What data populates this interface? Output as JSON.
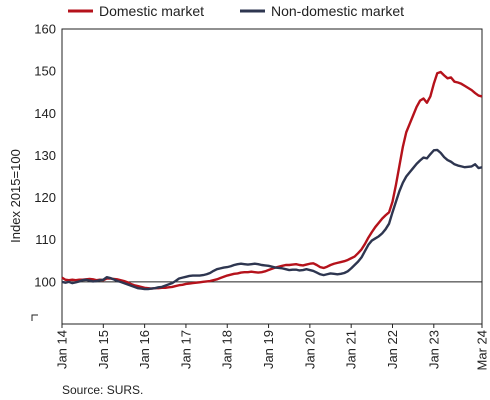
{
  "chart_data": {
    "type": "line",
    "ylabel": "Index 2015=100",
    "ylim": [
      90,
      160
    ],
    "yticks": [
      100,
      110,
      120,
      130,
      140,
      150,
      160
    ],
    "xlim": [
      "2014-01",
      "2024-03"
    ],
    "xticks": [
      {
        "label": "Jan 14",
        "x": "2014-01"
      },
      {
        "label": "Jan 15",
        "x": "2015-01"
      },
      {
        "label": "Jan 16",
        "x": "2016-01"
      },
      {
        "label": "Jan 17",
        "x": "2017-01"
      },
      {
        "label": "Jan 18",
        "x": "2018-01"
      },
      {
        "label": "Jan 19",
        "x": "2019-01"
      },
      {
        "label": "Jan 20",
        "x": "2020-01"
      },
      {
        "label": "Jan 21",
        "x": "2021-01"
      },
      {
        "label": "Jan 22",
        "x": "2022-01"
      },
      {
        "label": "Jan 23",
        "x": "2023-01"
      },
      {
        "label": "Mar 24",
        "x": "2024-03"
      }
    ],
    "reference_line": 100,
    "axis_break": true,
    "legend_position": "top",
    "source": "Source: SURS.",
    "series": [
      {
        "name": "Domestic market",
        "color": "#b5121b",
        "points": [
          [
            "2014-01",
            101.0
          ],
          [
            "2014-02",
            100.5
          ],
          [
            "2014-03",
            100.4
          ],
          [
            "2014-04",
            100.5
          ],
          [
            "2014-05",
            100.4
          ],
          [
            "2014-06",
            100.5
          ],
          [
            "2014-07",
            100.5
          ],
          [
            "2014-08",
            100.6
          ],
          [
            "2014-09",
            100.7
          ],
          [
            "2014-10",
            100.6
          ],
          [
            "2014-11",
            100.4
          ],
          [
            "2014-12",
            100.5
          ],
          [
            "2015-01",
            100.4
          ],
          [
            "2015-02",
            100.8
          ],
          [
            "2015-03",
            100.8
          ],
          [
            "2015-04",
            100.7
          ],
          [
            "2015-05",
            100.6
          ],
          [
            "2015-06",
            100.4
          ],
          [
            "2015-07",
            100.2
          ],
          [
            "2015-08",
            99.9
          ],
          [
            "2015-09",
            99.5
          ],
          [
            "2015-10",
            99.2
          ],
          [
            "2015-11",
            99.0
          ],
          [
            "2015-12",
            98.8
          ],
          [
            "2016-01",
            98.6
          ],
          [
            "2016-02",
            98.5
          ],
          [
            "2016-03",
            98.4
          ],
          [
            "2016-04",
            98.5
          ],
          [
            "2016-05",
            98.5
          ],
          [
            "2016-06",
            98.6
          ],
          [
            "2016-07",
            98.6
          ],
          [
            "2016-08",
            98.7
          ],
          [
            "2016-09",
            98.8
          ],
          [
            "2016-10",
            99.0
          ],
          [
            "2016-11",
            99.2
          ],
          [
            "2016-12",
            99.3
          ],
          [
            "2017-01",
            99.5
          ],
          [
            "2017-02",
            99.6
          ],
          [
            "2017-03",
            99.7
          ],
          [
            "2017-04",
            99.8
          ],
          [
            "2017-05",
            99.9
          ],
          [
            "2017-06",
            100.0
          ],
          [
            "2017-07",
            100.1
          ],
          [
            "2017-08",
            100.2
          ],
          [
            "2017-09",
            100.4
          ],
          [
            "2017-10",
            100.6
          ],
          [
            "2017-11",
            100.9
          ],
          [
            "2017-12",
            101.2
          ],
          [
            "2018-01",
            101.5
          ],
          [
            "2018-02",
            101.7
          ],
          [
            "2018-03",
            101.9
          ],
          [
            "2018-04",
            102.0
          ],
          [
            "2018-05",
            102.2
          ],
          [
            "2018-06",
            102.3
          ],
          [
            "2018-07",
            102.3
          ],
          [
            "2018-08",
            102.4
          ],
          [
            "2018-09",
            102.3
          ],
          [
            "2018-10",
            102.2
          ],
          [
            "2018-11",
            102.3
          ],
          [
            "2018-12",
            102.5
          ],
          [
            "2019-01",
            102.8
          ],
          [
            "2019-02",
            103.1
          ],
          [
            "2019-03",
            103.4
          ],
          [
            "2019-04",
            103.6
          ],
          [
            "2019-05",
            103.8
          ],
          [
            "2019-06",
            104.0
          ],
          [
            "2019-07",
            104.0
          ],
          [
            "2019-08",
            104.1
          ],
          [
            "2019-09",
            104.2
          ],
          [
            "2019-10",
            104.0
          ],
          [
            "2019-11",
            103.9
          ],
          [
            "2019-12",
            104.1
          ],
          [
            "2020-01",
            104.3
          ],
          [
            "2020-02",
            104.4
          ],
          [
            "2020-03",
            104.0
          ],
          [
            "2020-04",
            103.5
          ],
          [
            "2020-05",
            103.3
          ],
          [
            "2020-06",
            103.6
          ],
          [
            "2020-07",
            104.0
          ],
          [
            "2020-08",
            104.3
          ],
          [
            "2020-09",
            104.5
          ],
          [
            "2020-10",
            104.7
          ],
          [
            "2020-11",
            104.9
          ],
          [
            "2020-12",
            105.2
          ],
          [
            "2021-01",
            105.6
          ],
          [
            "2021-02",
            106.0
          ],
          [
            "2021-03",
            106.8
          ],
          [
            "2021-04",
            107.7
          ],
          [
            "2021-05",
            109.0
          ],
          [
            "2021-06",
            110.5
          ],
          [
            "2021-07",
            111.8
          ],
          [
            "2021-08",
            113.0
          ],
          [
            "2021-09",
            114.0
          ],
          [
            "2021-10",
            115.0
          ],
          [
            "2021-11",
            115.8
          ],
          [
            "2021-12",
            116.5
          ],
          [
            "2022-01",
            119.0
          ],
          [
            "2022-02",
            123.0
          ],
          [
            "2022-03",
            127.5
          ],
          [
            "2022-04",
            132.0
          ],
          [
            "2022-05",
            135.5
          ],
          [
            "2022-06",
            137.5
          ],
          [
            "2022-07",
            139.5
          ],
          [
            "2022-08",
            141.5
          ],
          [
            "2022-09",
            143.0
          ],
          [
            "2022-10",
            143.5
          ],
          [
            "2022-11",
            142.5
          ],
          [
            "2022-12",
            144.0
          ],
          [
            "2023-01",
            147.0
          ],
          [
            "2023-02",
            149.5
          ],
          [
            "2023-03",
            149.8
          ],
          [
            "2023-04",
            149.0
          ],
          [
            "2023-05",
            148.3
          ],
          [
            "2023-06",
            148.5
          ],
          [
            "2023-07",
            147.5
          ],
          [
            "2023-08",
            147.3
          ],
          [
            "2023-09",
            147.0
          ],
          [
            "2023-10",
            146.5
          ],
          [
            "2023-11",
            146.0
          ],
          [
            "2023-12",
            145.5
          ],
          [
            "2024-01",
            144.8
          ],
          [
            "2024-02",
            144.2
          ],
          [
            "2024-03",
            144.0
          ]
        ]
      },
      {
        "name": "Non-domestic market",
        "color": "#2e3650",
        "points": [
          [
            "2014-01",
            100.0
          ],
          [
            "2014-02",
            99.8
          ],
          [
            "2014-03",
            100.0
          ],
          [
            "2014-04",
            99.7
          ],
          [
            "2014-05",
            99.9
          ],
          [
            "2014-06",
            100.1
          ],
          [
            "2014-07",
            100.4
          ],
          [
            "2014-08",
            100.5
          ],
          [
            "2014-09",
            100.3
          ],
          [
            "2014-10",
            100.1
          ],
          [
            "2014-11",
            100.2
          ],
          [
            "2014-12",
            100.4
          ],
          [
            "2015-01",
            100.5
          ],
          [
            "2015-02",
            101.1
          ],
          [
            "2015-03",
            100.9
          ],
          [
            "2015-04",
            100.6
          ],
          [
            "2015-05",
            100.2
          ],
          [
            "2015-06",
            100.0
          ],
          [
            "2015-07",
            99.7
          ],
          [
            "2015-08",
            99.4
          ],
          [
            "2015-09",
            99.1
          ],
          [
            "2015-10",
            98.8
          ],
          [
            "2015-11",
            98.5
          ],
          [
            "2015-12",
            98.4
          ],
          [
            "2016-01",
            98.3
          ],
          [
            "2016-02",
            98.3
          ],
          [
            "2016-03",
            98.4
          ],
          [
            "2016-04",
            98.5
          ],
          [
            "2016-05",
            98.7
          ],
          [
            "2016-06",
            98.8
          ],
          [
            "2016-07",
            99.1
          ],
          [
            "2016-08",
            99.4
          ],
          [
            "2016-09",
            99.7
          ],
          [
            "2016-10",
            100.2
          ],
          [
            "2016-11",
            100.8
          ],
          [
            "2016-12",
            101.0
          ],
          [
            "2017-01",
            101.2
          ],
          [
            "2017-02",
            101.4
          ],
          [
            "2017-03",
            101.5
          ],
          [
            "2017-04",
            101.5
          ],
          [
            "2017-05",
            101.5
          ],
          [
            "2017-06",
            101.6
          ],
          [
            "2017-07",
            101.8
          ],
          [
            "2017-08",
            102.1
          ],
          [
            "2017-09",
            102.6
          ],
          [
            "2017-10",
            103.0
          ],
          [
            "2017-11",
            103.2
          ],
          [
            "2017-12",
            103.4
          ],
          [
            "2018-01",
            103.5
          ],
          [
            "2018-02",
            103.7
          ],
          [
            "2018-03",
            104.0
          ],
          [
            "2018-04",
            104.2
          ],
          [
            "2018-05",
            104.3
          ],
          [
            "2018-06",
            104.2
          ],
          [
            "2018-07",
            104.1
          ],
          [
            "2018-08",
            104.2
          ],
          [
            "2018-09",
            104.3
          ],
          [
            "2018-10",
            104.2
          ],
          [
            "2018-11",
            104.0
          ],
          [
            "2018-12",
            103.9
          ],
          [
            "2019-01",
            103.8
          ],
          [
            "2019-02",
            103.6
          ],
          [
            "2019-03",
            103.4
          ],
          [
            "2019-04",
            103.3
          ],
          [
            "2019-05",
            103.2
          ],
          [
            "2019-06",
            103.0
          ],
          [
            "2019-07",
            102.8
          ],
          [
            "2019-08",
            102.9
          ],
          [
            "2019-09",
            102.9
          ],
          [
            "2019-10",
            102.7
          ],
          [
            "2019-11",
            102.8
          ],
          [
            "2019-12",
            103.0
          ],
          [
            "2020-01",
            102.8
          ],
          [
            "2020-02",
            102.6
          ],
          [
            "2020-03",
            102.2
          ],
          [
            "2020-04",
            101.8
          ],
          [
            "2020-05",
            101.6
          ],
          [
            "2020-06",
            101.8
          ],
          [
            "2020-07",
            102.0
          ],
          [
            "2020-08",
            101.9
          ],
          [
            "2020-09",
            101.8
          ],
          [
            "2020-10",
            101.9
          ],
          [
            "2020-11",
            102.1
          ],
          [
            "2020-12",
            102.5
          ],
          [
            "2021-01",
            103.2
          ],
          [
            "2021-02",
            104.0
          ],
          [
            "2021-03",
            104.8
          ],
          [
            "2021-04",
            105.8
          ],
          [
            "2021-05",
            107.3
          ],
          [
            "2021-06",
            108.8
          ],
          [
            "2021-07",
            109.8
          ],
          [
            "2021-08",
            110.3
          ],
          [
            "2021-09",
            110.8
          ],
          [
            "2021-10",
            111.5
          ],
          [
            "2021-11",
            112.5
          ],
          [
            "2021-12",
            113.8
          ],
          [
            "2022-01",
            116.5
          ],
          [
            "2022-02",
            119.0
          ],
          [
            "2022-03",
            121.5
          ],
          [
            "2022-04",
            123.5
          ],
          [
            "2022-05",
            125.0
          ],
          [
            "2022-06",
            126.0
          ],
          [
            "2022-07",
            127.0
          ],
          [
            "2022-08",
            128.0
          ],
          [
            "2022-09",
            128.8
          ],
          [
            "2022-10",
            129.5
          ],
          [
            "2022-11",
            129.3
          ],
          [
            "2022-12",
            130.3
          ],
          [
            "2023-01",
            131.2
          ],
          [
            "2023-02",
            131.3
          ],
          [
            "2023-03",
            130.6
          ],
          [
            "2023-04",
            129.6
          ],
          [
            "2023-05",
            128.9
          ],
          [
            "2023-06",
            128.5
          ],
          [
            "2023-07",
            127.9
          ],
          [
            "2023-08",
            127.6
          ],
          [
            "2023-09",
            127.4
          ],
          [
            "2023-10",
            127.2
          ],
          [
            "2023-11",
            127.3
          ],
          [
            "2023-12",
            127.4
          ],
          [
            "2024-01",
            127.9
          ],
          [
            "2024-02",
            127.0
          ],
          [
            "2024-03",
            127.2
          ]
        ]
      }
    ]
  }
}
